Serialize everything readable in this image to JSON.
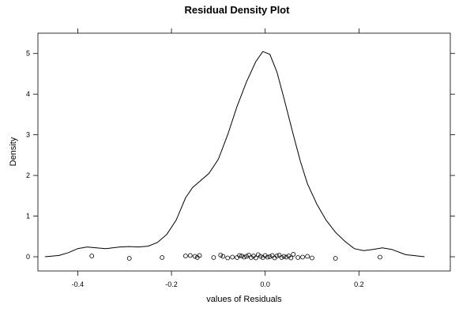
{
  "chart_data": {
    "type": "line",
    "title": "Residual Density Plot",
    "xlabel": "values of Residuals",
    "ylabel": "Density",
    "xlim": [
      -0.485,
      0.395
    ],
    "ylim": [
      -0.35,
      5.5
    ],
    "x_ticks": [
      -0.4,
      -0.2,
      0.0,
      0.2
    ],
    "x_tick_labels": [
      "-0.4",
      "-0.2",
      "0.0",
      "0.2"
    ],
    "y_ticks": [
      0,
      1,
      2,
      3,
      4,
      5
    ],
    "y_tick_labels": [
      "0",
      "1",
      "2",
      "3",
      "4",
      "5"
    ],
    "grid": false,
    "series": [
      {
        "x": [
          -0.47,
          -0.44,
          -0.42,
          -0.4,
          -0.38,
          -0.36,
          -0.34,
          -0.31,
          -0.29,
          -0.27,
          -0.25,
          -0.23,
          -0.21,
          -0.19,
          -0.17,
          -0.155,
          -0.14,
          -0.12,
          -0.1,
          -0.08,
          -0.06,
          -0.04,
          -0.02,
          -0.005,
          0.01,
          0.025,
          0.04,
          0.06,
          0.075,
          0.09,
          0.11,
          0.13,
          0.15,
          0.17,
          0.19,
          0.21,
          0.23,
          0.25,
          0.27,
          0.3,
          0.34
        ],
        "y": [
          0.0,
          0.03,
          0.1,
          0.2,
          0.24,
          0.22,
          0.2,
          0.24,
          0.25,
          0.24,
          0.26,
          0.35,
          0.55,
          0.9,
          1.45,
          1.7,
          1.85,
          2.05,
          2.4,
          3.0,
          3.7,
          4.3,
          4.8,
          5.05,
          4.98,
          4.55,
          3.9,
          3.0,
          2.35,
          1.8,
          1.3,
          0.9,
          0.6,
          0.38,
          0.2,
          0.15,
          0.18,
          0.22,
          0.18,
          0.05,
          0.0
        ]
      }
    ],
    "rug_points": {
      "x": [
        -0.37,
        -0.29,
        -0.22,
        -0.17,
        -0.16,
        -0.15,
        -0.145,
        -0.14,
        -0.11,
        -0.095,
        -0.09,
        -0.08,
        -0.07,
        -0.06,
        -0.055,
        -0.05,
        -0.045,
        -0.04,
        -0.035,
        -0.03,
        -0.025,
        -0.02,
        -0.015,
        -0.01,
        -0.005,
        0.0,
        0.005,
        0.01,
        0.015,
        0.02,
        0.025,
        0.03,
        0.035,
        0.04,
        0.045,
        0.05,
        0.055,
        0.06,
        0.07,
        0.08,
        0.09,
        0.1,
        0.15,
        0.245
      ],
      "y": [
        0.02,
        -0.04,
        -0.02,
        0.02,
        0.03,
        0.01,
        -0.02,
        0.03,
        -0.02,
        0.04,
        0.01,
        -0.03,
        -0.01,
        -0.02,
        0.03,
        0.02,
        -0.01,
        0.01,
        0.04,
        -0.02,
        0.02,
        -0.03,
        0.05,
        0.01,
        -0.02,
        0.03,
        -0.01,
        0.0,
        0.03,
        -0.03,
        0.02,
        0.04,
        -0.02,
        0.01,
        -0.01,
        0.02,
        -0.03,
        0.06,
        -0.02,
        -0.01,
        0.01,
        -0.03,
        -0.04,
        -0.01
      ]
    }
  }
}
